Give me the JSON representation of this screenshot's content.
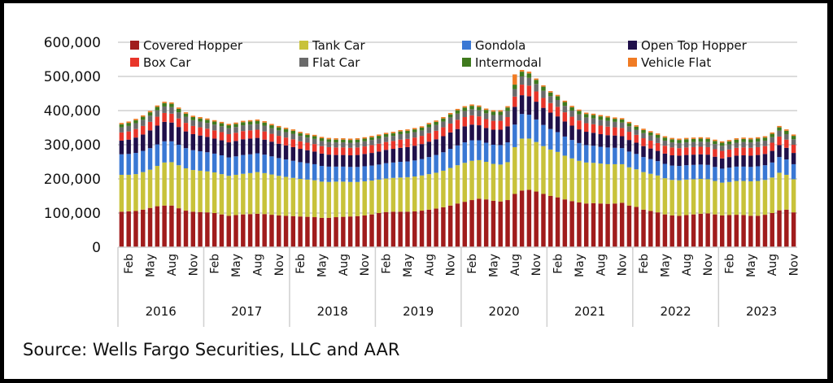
{
  "chart_data": {
    "type": "bar",
    "stacked": true,
    "title": "",
    "xlabel": "",
    "ylabel": "",
    "ylim": [
      0,
      600000
    ],
    "yticks": [
      0,
      100000,
      200000,
      300000,
      400000,
      500000,
      600000
    ],
    "ytick_labels": [
      "0",
      "100,000",
      "200,000",
      "300,000",
      "400,000",
      "500,000",
      "600,000"
    ],
    "grid": true,
    "legend_position": "top",
    "years": [
      "2016",
      "2017",
      "2018",
      "2019",
      "2020",
      "2021",
      "2022",
      "2023"
    ],
    "month_tick_labels": [
      "Feb",
      "May",
      "Aug",
      "Nov"
    ],
    "x_note": "Monthly bars Jan 2016 - Nov 2023 (95 months)",
    "series": [
      {
        "name": "Covered Hopper",
        "color": "#a01c1c",
        "values": [
          104000,
          105000,
          106000,
          110000,
          115000,
          120000,
          122000,
          122000,
          114000,
          107000,
          104000,
          103000,
          102000,
          100000,
          96000,
          92000,
          94000,
          96000,
          97000,
          98000,
          97000,
          95000,
          93000,
          92000,
          91000,
          90000,
          89000,
          88000,
          86000,
          86000,
          88000,
          89000,
          90000,
          91000,
          93000,
          96000,
          100000,
          103000,
          104000,
          104000,
          104000,
          105000,
          107000,
          110000,
          113000,
          117000,
          122000,
          128000,
          133000,
          138000,
          142000,
          140000,
          136000,
          134000,
          138000,
          156000,
          166000,
          168000,
          163000,
          156000,
          150000,
          146000,
          140000,
          135000,
          131000,
          128000,
          129000,
          128000,
          127000,
          128000,
          130000,
          122000,
          118000,
          110000,
          106000,
          102000,
          96000,
          93000,
          92000,
          94000,
          96000,
          98000,
          99000,
          96000,
          93000,
          94000,
          95000,
          94000,
          92000,
          92000,
          95000,
          100000,
          108000,
          110000,
          102000
        ]
      },
      {
        "name": "Tank Car",
        "color": "#c8c23a",
        "values": [
          108000,
          107000,
          108000,
          110000,
          112000,
          118000,
          126000,
          127000,
          126000,
          124000,
          122000,
          121000,
          120000,
          119000,
          118000,
          117000,
          118000,
          119000,
          120000,
          122000,
          120000,
          118000,
          116000,
          114000,
          112000,
          110000,
          109000,
          108000,
          106000,
          105000,
          104000,
          103000,
          101000,
          100000,
          100000,
          99000,
          98000,
          98000,
          99000,
          100000,
          101000,
          102000,
          103000,
          104000,
          105000,
          107000,
          110000,
          112000,
          114000,
          115000,
          113000,
          110000,
          108000,
          108000,
          111000,
          137000,
          152000,
          150000,
          145000,
          140000,
          136000,
          133000,
          128000,
          125000,
          122000,
          120000,
          118000,
          117000,
          116000,
          115000,
          113000,
          112000,
          110000,
          110000,
          109000,
          108000,
          106000,
          104000,
          104000,
          104000,
          103000,
          102000,
          100000,
          98000,
          96000,
          97000,
          99000,
          100000,
          101000,
          102000,
          102000,
          104000,
          110000,
          102000,
          97000
        ]
      },
      {
        "name": "Gondola",
        "color": "#3a78d4",
        "values": [
          60000,
          61000,
          62000,
          62000,
          63000,
          63000,
          62000,
          61000,
          60000,
          59000,
          58000,
          57000,
          56000,
          55000,
          55000,
          54000,
          54000,
          55000,
          55000,
          55000,
          54000,
          53000,
          52000,
          51000,
          50000,
          49000,
          48000,
          47000,
          46000,
          45000,
          44000,
          44000,
          44000,
          44000,
          44000,
          44000,
          44000,
          45000,
          45000,
          46000,
          46000,
          47000,
          48000,
          50000,
          52000,
          54000,
          56000,
          58000,
          60000,
          60000,
          58000,
          56000,
          56000,
          57000,
          58000,
          66000,
          72000,
          70000,
          66000,
          62000,
          60000,
          58000,
          56000,
          54000,
          52000,
          51000,
          50000,
          49000,
          49000,
          48000,
          47000,
          46000,
          45000,
          44000,
          43000,
          42000,
          42000,
          42000,
          42000,
          42000,
          42000,
          42000,
          42000,
          41000,
          41000,
          42000,
          42000,
          42000,
          42000,
          43000,
          43000,
          44000,
          46000,
          45000,
          44000
        ]
      },
      {
        "name": "Open Top Hopper",
        "color": "#20104a",
        "values": [
          40000,
          42000,
          45000,
          48000,
          52000,
          55000,
          57000,
          55000,
          52000,
          49000,
          47000,
          46000,
          45000,
          44000,
          44000,
          44000,
          45000,
          46000,
          46000,
          45000,
          44000,
          43000,
          42000,
          41000,
          40000,
          39000,
          38000,
          37000,
          36000,
          35000,
          34000,
          34000,
          34000,
          35000,
          36000,
          37000,
          38000,
          39000,
          40000,
          41000,
          42000,
          43000,
          44000,
          45000,
          46000,
          47000,
          48000,
          48000,
          47000,
          46000,
          44000,
          43000,
          44000,
          45000,
          47000,
          52000,
          55000,
          54000,
          52000,
          50000,
          48000,
          46000,
          44000,
          42000,
          40000,
          39000,
          38000,
          37000,
          36000,
          36000,
          35000,
          34000,
          33000,
          32000,
          31000,
          30000,
          30000,
          30000,
          30000,
          30000,
          30000,
          30000,
          30000,
          30000,
          30000,
          31000,
          32000,
          33000,
          33000,
          33000,
          33000,
          34000,
          35000,
          34000,
          33000
        ]
      },
      {
        "name": "Box Car",
        "color": "#e8352a",
        "values": [
          24000,
          24000,
          25000,
          25000,
          25000,
          26000,
          26000,
          26000,
          25000,
          25000,
          24000,
          24000,
          24000,
          24000,
          24000,
          24000,
          24000,
          24000,
          24000,
          24000,
          24000,
          23000,
          23000,
          23000,
          23000,
          22000,
          22000,
          22000,
          22000,
          22000,
          22000,
          22000,
          22000,
          22000,
          22000,
          23000,
          23000,
          23000,
          23000,
          24000,
          24000,
          24000,
          24000,
          25000,
          25000,
          26000,
          26000,
          27000,
          27000,
          27000,
          26000,
          26000,
          26000,
          26000,
          27000,
          30000,
          31000,
          31000,
          30000,
          29000,
          28000,
          28000,
          27000,
          26000,
          26000,
          25000,
          25000,
          25000,
          25000,
          24000,
          24000,
          24000,
          23000,
          23000,
          23000,
          23000,
          23000,
          23000,
          22000,
          22000,
          22000,
          22000,
          22000,
          22000,
          22000,
          22000,
          23000,
          23000,
          23000,
          23000,
          23000,
          24000,
          25000,
          24000,
          24000
        ]
      },
      {
        "name": "Flat Car",
        "color": "#6a6a6a",
        "values": [
          15000,
          16000,
          17000,
          18000,
          18000,
          19000,
          19000,
          19000,
          18000,
          18000,
          17000,
          17000,
          17000,
          17000,
          17000,
          17000,
          17000,
          17000,
          17000,
          17000,
          17000,
          16000,
          16000,
          16000,
          16000,
          16000,
          15000,
          15000,
          15000,
          15000,
          15000,
          15000,
          15000,
          15000,
          15000,
          15000,
          15000,
          15000,
          15000,
          16000,
          16000,
          16000,
          16000,
          17000,
          17000,
          17000,
          18000,
          18000,
          18000,
          18000,
          18000,
          17000,
          17000,
          17000,
          18000,
          22000,
          24000,
          23000,
          22000,
          21000,
          20000,
          20000,
          19000,
          18000,
          18000,
          17000,
          17000,
          17000,
          17000,
          16000,
          16000,
          16000,
          15000,
          15000,
          15000,
          15000,
          15000,
          15000,
          15000,
          15000,
          15000,
          15000,
          15000,
          15000,
          15000,
          15000,
          15000,
          16000,
          16000,
          16000,
          16000,
          16000,
          17000,
          16000,
          16000
        ]
      },
      {
        "name": "Intermodal",
        "color": "#3f7a1e",
        "values": [
          9000,
          9000,
          9000,
          9000,
          10000,
          10000,
          10000,
          10000,
          10000,
          9000,
          9000,
          9000,
          9000,
          9000,
          9000,
          9000,
          9000,
          9000,
          9000,
          9000,
          9000,
          9000,
          9000,
          9000,
          9000,
          8000,
          8000,
          8000,
          8000,
          8000,
          8000,
          8000,
          8000,
          8000,
          8000,
          8000,
          8000,
          8000,
          8000,
          8000,
          8000,
          8000,
          8000,
          9000,
          9000,
          9000,
          9000,
          10000,
          10000,
          10000,
          10000,
          10000,
          10000,
          10000,
          10000,
          13000,
          14000,
          13000,
          12000,
          12000,
          11000,
          11000,
          11000,
          10000,
          10000,
          10000,
          10000,
          10000,
          10000,
          9000,
          9000,
          9000,
          9000,
          9000,
          9000,
          9000,
          9000,
          9000,
          9000,
          9000,
          9000,
          9000,
          9000,
          9000,
          9000,
          9000,
          9000,
          9000,
          9000,
          9000,
          9000,
          10000,
          10000,
          10000,
          10000
        ]
      },
      {
        "name": "Vehicle Flat",
        "color": "#f07b24",
        "values": [
          4000,
          4000,
          4000,
          4000,
          4000,
          4000,
          4000,
          4000,
          4000,
          4000,
          4000,
          4000,
          4000,
          4000,
          4000,
          4000,
          4000,
          4000,
          4000,
          4000,
          4000,
          4000,
          4000,
          4000,
          4000,
          4000,
          4000,
          4000,
          4000,
          4000,
          4000,
          4000,
          4000,
          4000,
          4000,
          4000,
          4000,
          4000,
          4000,
          4000,
          4000,
          4000,
          4000,
          4000,
          4000,
          4000,
          4000,
          4000,
          4000,
          4000,
          4000,
          4000,
          4000,
          4000,
          4000,
          30000,
          5000,
          5000,
          4000,
          4000,
          4000,
          4000,
          4000,
          4000,
          4000,
          4000,
          4000,
          4000,
          4000,
          4000,
          4000,
          4000,
          4000,
          4000,
          4000,
          4000,
          4000,
          4000,
          4000,
          4000,
          4000,
          4000,
          4000,
          4000,
          4000,
          4000,
          4000,
          4000,
          4000,
          4000,
          4000,
          4000,
          4000,
          4000,
          4000
        ]
      }
    ]
  },
  "source": "Source: Wells Fargo Securities, LLC and AAR"
}
